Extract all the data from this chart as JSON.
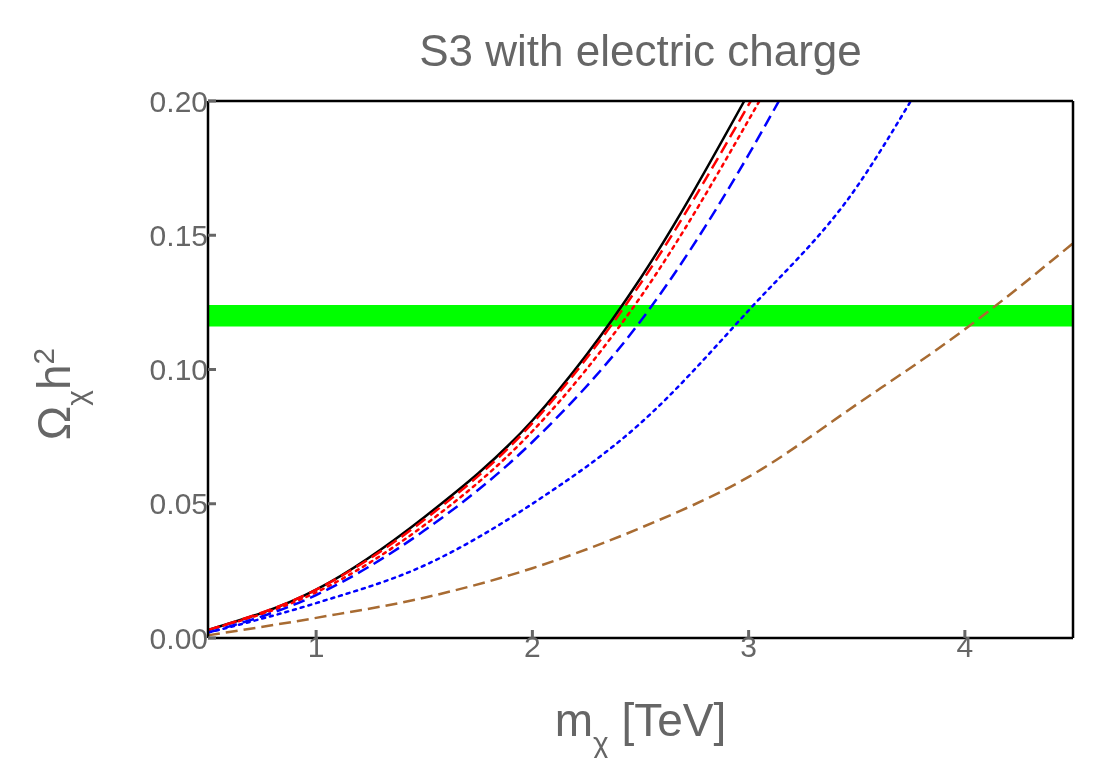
{
  "chart_data": {
    "type": "line",
    "title": "S3 with electric charge",
    "xlabel": "m$_{χ}$ [TeV]",
    "ylabel": "Ω$_{χ}$h$^{2}$",
    "xlim": [
      0.5,
      4.5
    ],
    "xticks": [
      1,
      2,
      3,
      4
    ],
    "ylim": [
      0,
      0.2
    ],
    "yticks": [
      {
        "value": 0,
        "label": "0.00"
      },
      0.05,
      {
        "value": 0.1,
        "label": "0.10"
      },
      0.15,
      {
        "value": 0.2,
        "label": "0.20"
      }
    ],
    "marker": "none",
    "bands": [
      {
        "axis": "y",
        "from": 0.116,
        "to": 0.124,
        "color": "#00ff00"
      }
    ],
    "series": [
      {
        "color": "#000000",
        "line_style": "solid",
        "x": [
          0.5,
          1,
          1.5,
          2,
          2.5,
          2.98
        ],
        "values": [
          0.003,
          0.018,
          0.045,
          0.081,
          0.134,
          0.2
        ]
      },
      {
        "color": "#ff0000",
        "line_style": "dashed",
        "x": [
          0.5,
          1,
          1.5,
          2,
          2.5,
          3.01
        ],
        "values": [
          0.003,
          0.018,
          0.044,
          0.08,
          0.132,
          0.2
        ]
      },
      {
        "color": "#ff0000",
        "line_style": "dotted",
        "x": [
          0.5,
          1,
          1.5,
          2,
          2.5,
          3.05
        ],
        "values": [
          0.003,
          0.017,
          0.042,
          0.077,
          0.127,
          0.2
        ]
      },
      {
        "color": "#0000ff",
        "line_style": "dashed",
        "x": [
          0.5,
          1,
          1.5,
          2,
          2.5,
          3,
          3.14
        ],
        "values": [
          0.002,
          0.016,
          0.04,
          0.073,
          0.118,
          0.18,
          0.2
        ]
      },
      {
        "color": "#0000ff",
        "line_style": "dotted",
        "x": [
          0.5,
          1,
          1.5,
          2,
          2.5,
          3,
          3.5,
          3.75
        ],
        "values": [
          0.002,
          0.013,
          0.027,
          0.05,
          0.08,
          0.122,
          0.168,
          0.2
        ]
      },
      {
        "color": "#a86b32",
        "line_style": "dashed",
        "x": [
          0.5,
          1,
          1.5,
          2,
          2.5,
          3,
          3.5,
          4,
          4.5
        ],
        "values": [
          0.001,
          0.0075,
          0.015,
          0.026,
          0.041,
          0.06,
          0.087,
          0.115,
          0.147
        ]
      }
    ]
  }
}
